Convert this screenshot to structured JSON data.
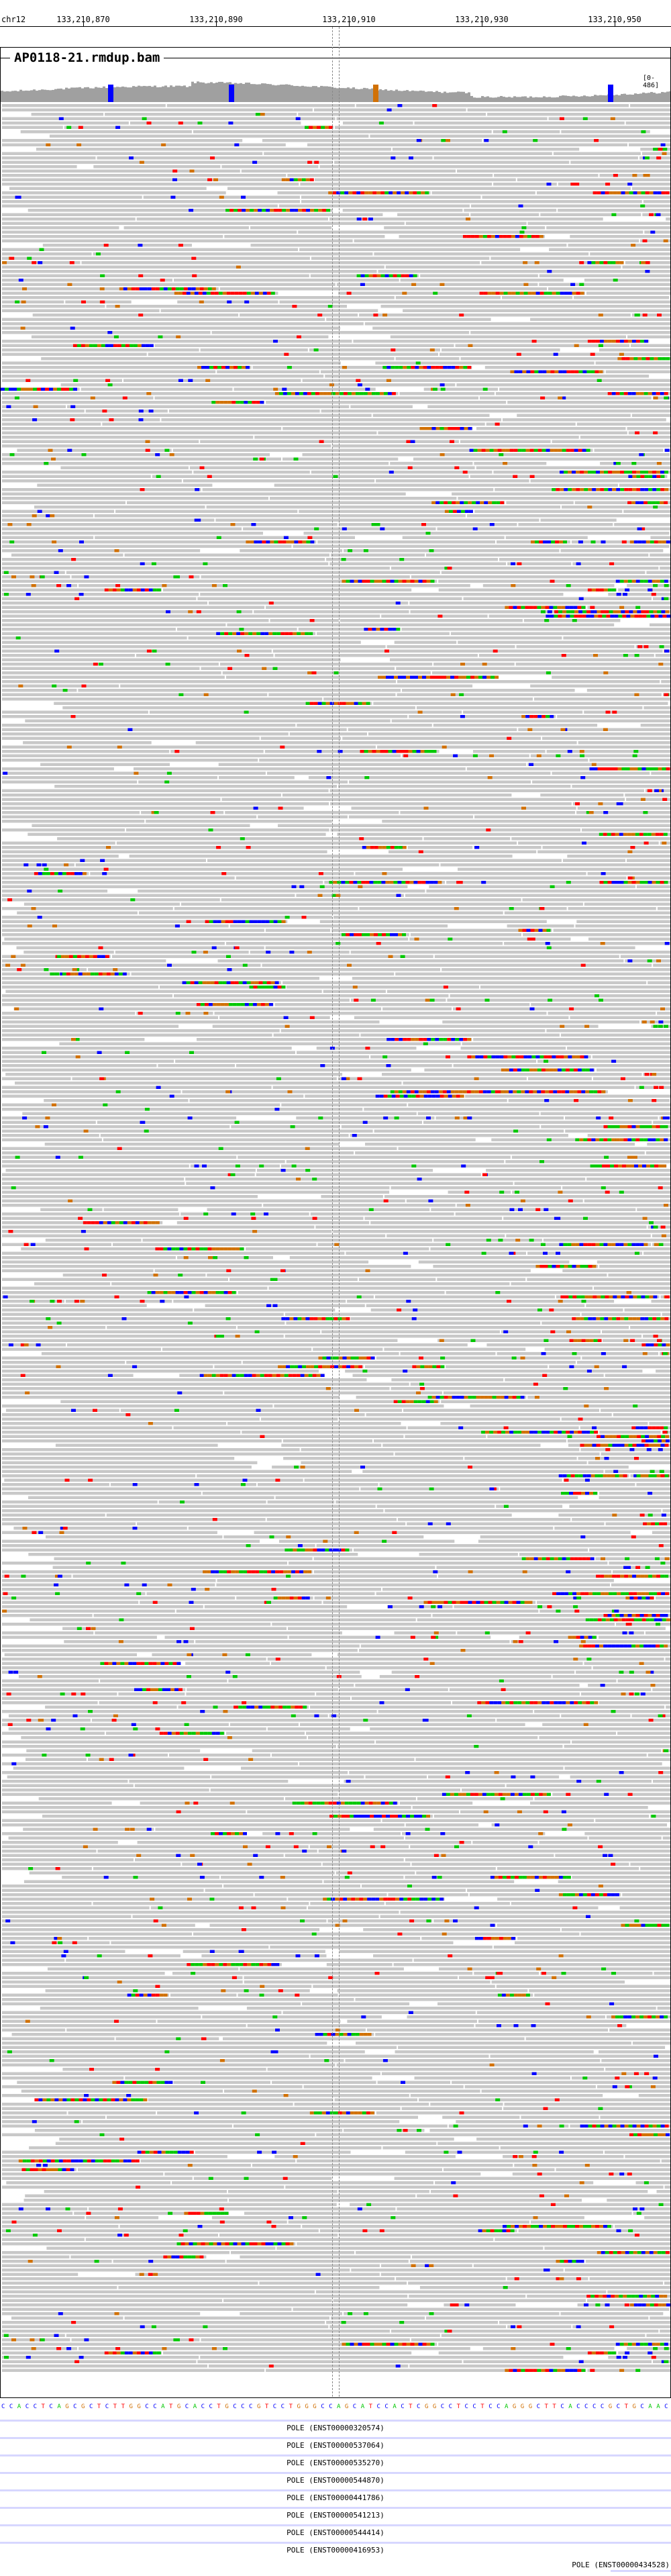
{
  "ruler": {
    "chromosome": "chr12",
    "ticks": [
      "133,210,870",
      "133,210,890",
      "133,210,910",
      "133,210,930",
      "133,210,950"
    ]
  },
  "track": {
    "name": "AP0118-21.rmdup.bam",
    "coverage_scale": "[0-486]"
  },
  "colors": {
    "A": "#00c800",
    "C": "#0000ff",
    "G": "#d17105",
    "T": "#ff0000",
    "read": "#c8c8c8",
    "coverage": "#a0a0a0",
    "feature": "#d7d7ff"
  },
  "reference_sequence": "CCACCTCAGCGCTCTTGGCCATGCACCTGCCCGTCCTGGGCCAGCATCCACTCGGCCTCCTCCAGGGCTTCACCCCGCTGCAAC",
  "features": {
    "transcripts": [
      "POLE (ENST00000320574)",
      "POLE (ENST00000537064)",
      "POLE (ENST00000535270)",
      "POLE (ENST00000544870)",
      "POLE (ENST00000441786)",
      "POLE (ENST00000541213)",
      "POLE (ENST00000544414)",
      "POLE (ENST00000416953)"
    ],
    "last_gene": "POLE (ENST00000434528)"
  }
}
